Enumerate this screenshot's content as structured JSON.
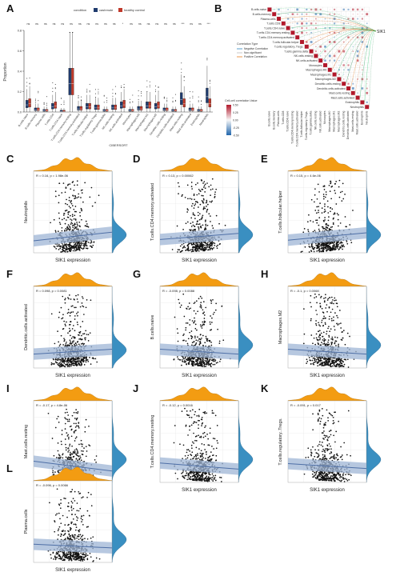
{
  "panels": {
    "A": "A",
    "B": "B",
    "C": "C",
    "D": "D",
    "E": "E",
    "F": "F",
    "G": "G",
    "H": "H",
    "I": "I",
    "J": "J",
    "K": "K",
    "L": "L"
  },
  "colors": {
    "cashmute": "#1f3b6e",
    "healthy_control": "#c0392b",
    "density_top": "#f39c12",
    "density_side": "#3a8fc1",
    "regression_band": "#9fb6d6",
    "regression_line": "#4e6fa6"
  },
  "panelA": {
    "legend_title": "condition",
    "legend_items": [
      "cashmute",
      "healthy control"
    ],
    "ylabel": "Proportion",
    "xlabel": "CIBERSORT",
    "yticks": [
      "0.0",
      "0.2",
      "0.4",
      "0.6",
      "0.8"
    ],
    "cells": [
      "B.cells.naive",
      "B.cells.memory",
      "Plasma.cells",
      "T.cells.CD8",
      "T.cells.CD4.naive",
      "T.cells.CD4.memory.resting",
      "T.cells.CD4.memory.activated",
      "T.cells.follicular.helper",
      "T.cells.regulatory.Tregs",
      "T.cells.gamma.delta",
      "NK.cells.resting",
      "NK.cells.activated",
      "Monocytes",
      "Macrophages.M0",
      "Macrophages.M1",
      "Macrophages.M2",
      "Dendritic.cells.resting",
      "Dendritic.cells.activated",
      "Mast.cells.resting",
      "Mast.cells.activated",
      "Eosinophils",
      "Neutrophils"
    ],
    "significance": [
      "ns",
      "ns",
      "ns",
      "ns",
      "ns",
      "ns",
      "ns",
      "ns",
      "ns",
      "ns",
      "ns",
      "*",
      "ns",
      "ns",
      "ns",
      "ns",
      "ns",
      "ns",
      "***",
      "ns",
      "ns",
      "***"
    ],
    "box_medians": [
      [
        0.07,
        0.08
      ],
      [
        0.02,
        0.02
      ],
      [
        0.01,
        0.01
      ],
      [
        0.05,
        0.06
      ],
      [
        0.005,
        0.005
      ],
      [
        0.28,
        0.28
      ],
      [
        0.03,
        0.03
      ],
      [
        0.05,
        0.05
      ],
      [
        0.04,
        0.04
      ],
      [
        0.01,
        0.01
      ],
      [
        0.04,
        0.04
      ],
      [
        0.06,
        0.07
      ],
      [
        0.01,
        0.01
      ],
      [
        0.03,
        0.03
      ],
      [
        0.06,
        0.06
      ],
      [
        0.05,
        0.06
      ],
      [
        0.02,
        0.02
      ],
      [
        0.01,
        0.01
      ],
      [
        0.12,
        0.08
      ],
      [
        0.02,
        0.02
      ],
      [
        0.01,
        0.01
      ],
      [
        0.15,
        0.08
      ]
    ]
  },
  "panelB": {
    "rows": [
      "B.cells.naive",
      "B.cells.memory",
      "Plasma.cells",
      "T.cells.CD8",
      "T.cells.CD4.naive",
      "T.cells.CD4.memory.resting",
      "T.cells.CD4.memory.activated",
      "T.cells.follicular.helper",
      "T.cells.regulatory..Tregs.",
      "T.cells.gamma.delta",
      "NK.cells.resting",
      "NK.cells.activated",
      "Monocytes",
      "Macrophages.M0",
      "Macrophages.M1",
      "Macrophages.M2",
      "Dendritic.cells.resting",
      "Dendritic.cells.activated",
      "Mast.cells.resting",
      "Mast.cells.activated",
      "Eosinophils",
      "Neutrophils"
    ],
    "gene": "SIK1",
    "legend_title": "Correlation Type",
    "legend_items": [
      "Negative Correlation",
      "Non-significant",
      "Positive Correlation"
    ],
    "colorbar_title": "Cell-cell correlation Value",
    "colorbar_ticks": [
      "0.50",
      "0.25",
      "0.00",
      "-0.25",
      "-0.50"
    ]
  },
  "scatter_panels": [
    {
      "key": "C",
      "ylabel": "Neutrophils",
      "xlabel": "SIK1 expression",
      "stat": "R = 0.16, p = 1.98e-06",
      "slope": 0.35
    },
    {
      "key": "D",
      "ylabel": "T.cells.CD4.memory.activated",
      "xlabel": "SIK1 expression",
      "stat": "R = 0.13, p = 0.00062",
      "slope": 0.25
    },
    {
      "key": "E",
      "ylabel": "T.cells.follicular.helper",
      "xlabel": "SIK1 expression",
      "stat": "R = 0.15, p = 4.6e-06",
      "slope": 0.3
    },
    {
      "key": "F",
      "ylabel": "Dendritic.cells.activated",
      "xlabel": "SIK1 expression",
      "stat": "R = 0.098, p = 0.0081",
      "slope": 0.2
    },
    {
      "key": "G",
      "ylabel": "B.cells.naive",
      "xlabel": "SIK1 expression",
      "stat": "R = -0.098, p = 0.0088",
      "slope": -0.2
    },
    {
      "key": "H",
      "ylabel": "Macrophages.M2",
      "xlabel": "SIK1 expression",
      "stat": "R = -0.1, p = 0.0068",
      "slope": -0.2
    },
    {
      "key": "I",
      "ylabel": "Mast.cells.resting",
      "xlabel": "SIK1 expression",
      "stat": "R = -0.17, p = 4.8e-06",
      "slope": -0.4
    },
    {
      "key": "J",
      "ylabel": "T.cells.CD4.memory.resting",
      "xlabel": "SIK1 expression",
      "stat": "R = -0.12, p = 0.0016",
      "slope": -0.25
    },
    {
      "key": "K",
      "ylabel": "T.cells.regulatory..Tregs.",
      "xlabel": "SIK1 expression",
      "stat": "R = -0.091, p = 0.017",
      "slope": -0.2
    },
    {
      "key": "L",
      "ylabel": "Plasma.cells",
      "xlabel": "SIK1 expression",
      "stat": "R = -0.096, p = 0.0066",
      "slope": -0.15
    }
  ]
}
